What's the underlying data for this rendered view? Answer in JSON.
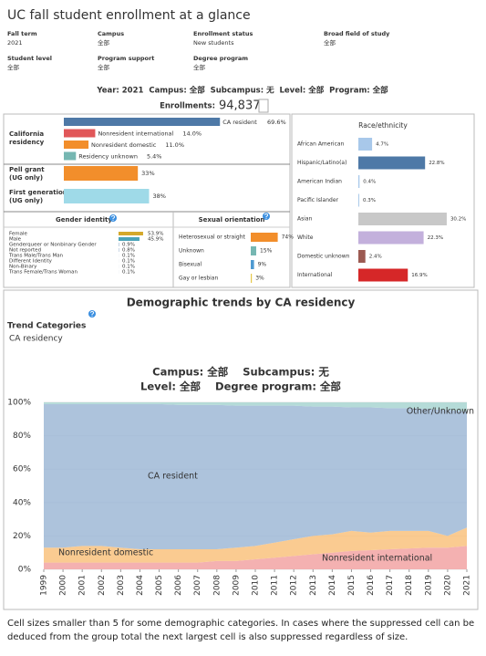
{
  "header": {
    "title": "UC fall student enrollment at a glance"
  },
  "filters": [
    {
      "label": "Fall term",
      "value": "2021"
    },
    {
      "label": "Campus",
      "value": "全部"
    },
    {
      "label": "Enrollment status",
      "value": "New students"
    },
    {
      "label": "Broad field of study",
      "value": "全部"
    },
    {
      "label": "Student level",
      "value": "全部"
    },
    {
      "label": "Program support",
      "value": "全部"
    },
    {
      "label": "Degree program",
      "value": "全部"
    }
  ],
  "summary": {
    "line": "Year: 2021  Campus: 全部  Subcampus: 无  Level: 全部  Program: 全部",
    "enrollments_label": "Enrollments:",
    "enrollments_value": "94,837"
  },
  "chart_data": [
    {
      "type": "bar",
      "title_lines": [
        "California",
        "residency"
      ],
      "categories": [
        "CA resident",
        "Nonresident international",
        "Nonresident domestic",
        "Residency unknown"
      ],
      "values": [
        69.6,
        14.0,
        11.0,
        5.4
      ],
      "value_labels": [
        "69.6%",
        "14.0%",
        "11.0%",
        "5.4%"
      ],
      "colors": [
        "#4e79a7",
        "#e15759",
        "#f28e2b",
        "#76b7b2"
      ]
    },
    {
      "type": "bar",
      "title_lines": [
        "Pell grant",
        "(UG only)"
      ],
      "values": [
        33
      ],
      "value_labels": [
        "33%"
      ],
      "colors": [
        "#f28e2b"
      ]
    },
    {
      "type": "bar",
      "title_lines": [
        "First generation",
        "(UG only)"
      ],
      "values": [
        38
      ],
      "value_labels": [
        "38%"
      ],
      "colors": [
        "#9fdae8"
      ]
    },
    {
      "type": "bar",
      "title": "Gender identity",
      "categories": [
        "Female",
        "Male",
        "Genderqueer or Nonbinary Gender",
        "Not reported",
        "Trans Male/Trans Man",
        "Different Identity",
        "Non-Binary",
        "Trans Female/Trans Woman"
      ],
      "values": [
        53.9,
        45.9,
        0.9,
        0.8,
        0.1,
        0.1,
        0.1,
        0.1
      ],
      "value_labels": [
        "53.9%",
        "45.9%",
        "0.9%",
        "0.8%",
        "0.1%",
        "0.1%",
        "0.1%",
        "0.1%"
      ],
      "colors": [
        "#d4a82b",
        "#4aa3b8",
        "#7a9cc0",
        "#7a9cc0",
        "#7a9cc0",
        "#7a9cc0",
        "#7a9cc0",
        "#7a9cc0"
      ]
    },
    {
      "type": "bar",
      "title": "Sexual orientation",
      "categories": [
        "Heterosexual or straight",
        "Unknown",
        "Bisexual",
        "Gay or lesbian"
      ],
      "values": [
        74,
        15,
        9,
        3
      ],
      "value_labels": [
        "74%",
        "15%",
        "9%",
        "3%"
      ],
      "colors": [
        "#f28e2b",
        "#76b7b2",
        "#4e9ad1",
        "#e6c84a"
      ]
    },
    {
      "type": "bar",
      "title": "Race/ethnicity",
      "categories": [
        "African American",
        "Hispanic/Latino(a)",
        "American Indian",
        "Pacific Islander",
        "Asian",
        "White",
        "Domestic unknown",
        "International"
      ],
      "values": [
        4.7,
        22.8,
        0.4,
        0.3,
        30.2,
        22.3,
        2.4,
        16.9
      ],
      "value_labels": [
        "4.7%",
        "22.8%",
        "0.4%",
        "0.3%",
        "30.2%",
        "22.3%",
        "2.4%",
        "16.9%"
      ],
      "colors": [
        "#a8c8ea",
        "#4e79a7",
        "#a8c8ea",
        "#a8c8ea",
        "#c8c8c8",
        "#c3b0dc",
        "#9c5a52",
        "#d62728"
      ]
    },
    {
      "type": "area",
      "title": "Demographic trends by CA residency",
      "trend_label": "Trend Categories",
      "trend_value": "CA residency",
      "subtitle_lines": [
        "Campus: 全部    Subcampus: 无",
        "Level: 全部    Degree program: 全部"
      ],
      "x": [
        1999,
        2000,
        2001,
        2002,
        2003,
        2004,
        2005,
        2006,
        2007,
        2008,
        2009,
        2010,
        2011,
        2012,
        2013,
        2014,
        2015,
        2016,
        2017,
        2018,
        2019,
        2020,
        2021
      ],
      "xlim": [
        1999,
        2021
      ],
      "xticks": [
        1999,
        2000,
        2001,
        2002,
        2003,
        2004,
        2005,
        2006,
        2007,
        2008,
        2009,
        2010,
        2011,
        2012,
        2013,
        2014,
        2015,
        2016,
        2017,
        2018,
        2019,
        2020,
        2021
      ],
      "ylim": [
        0,
        100
      ],
      "yticks": [
        {
          "value": 0,
          "label": "0%"
        },
        {
          "value": 20,
          "label": "20%"
        },
        {
          "value": 40,
          "label": "40%"
        },
        {
          "value": 60,
          "label": "60%"
        },
        {
          "value": 80,
          "label": "80%"
        },
        {
          "value": 100,
          "label": "100%"
        }
      ],
      "grid": true,
      "stacked": true,
      "series": [
        {
          "name": "Nonresident international",
          "color": "#f2a3a3",
          "values": [
            4,
            4,
            4,
            4,
            4,
            4,
            4,
            4,
            4,
            5,
            5,
            6,
            7,
            8,
            9,
            10,
            11,
            11.5,
            12,
            12.5,
            13,
            13,
            14
          ]
        },
        {
          "name": "Nonresident domestic",
          "color": "#f9c27e",
          "values": [
            9,
            9,
            10,
            10,
            9,
            8,
            8,
            8,
            8,
            7,
            8,
            8,
            9,
            10,
            11,
            11,
            12,
            10.5,
            11,
            10.5,
            10,
            7,
            11
          ]
        },
        {
          "name": "CA resident",
          "color": "#9fb9d6",
          "values": [
            86,
            86,
            85,
            85,
            86,
            87,
            87,
            86.5,
            86.5,
            86.5,
            85,
            84,
            82,
            80,
            77.5,
            76.5,
            74,
            75,
            73.5,
            73.5,
            73,
            75.5,
            69.6
          ]
        },
        {
          "name": "Other/Unknown",
          "color": "#a8d5d1",
          "values": [
            1,
            1,
            1,
            1,
            1,
            1,
            1,
            1.5,
            1.5,
            1.5,
            2,
            2,
            2,
            2,
            2.5,
            2.5,
            3,
            3,
            3.5,
            3.5,
            4,
            4.5,
            5.4
          ]
        }
      ]
    }
  ],
  "footnote": "Cell sizes smaller than 5 for some demographic categories. In cases where the suppressed cell can be deduced from the group total the next largest cell is also suppressed regardless of size."
}
